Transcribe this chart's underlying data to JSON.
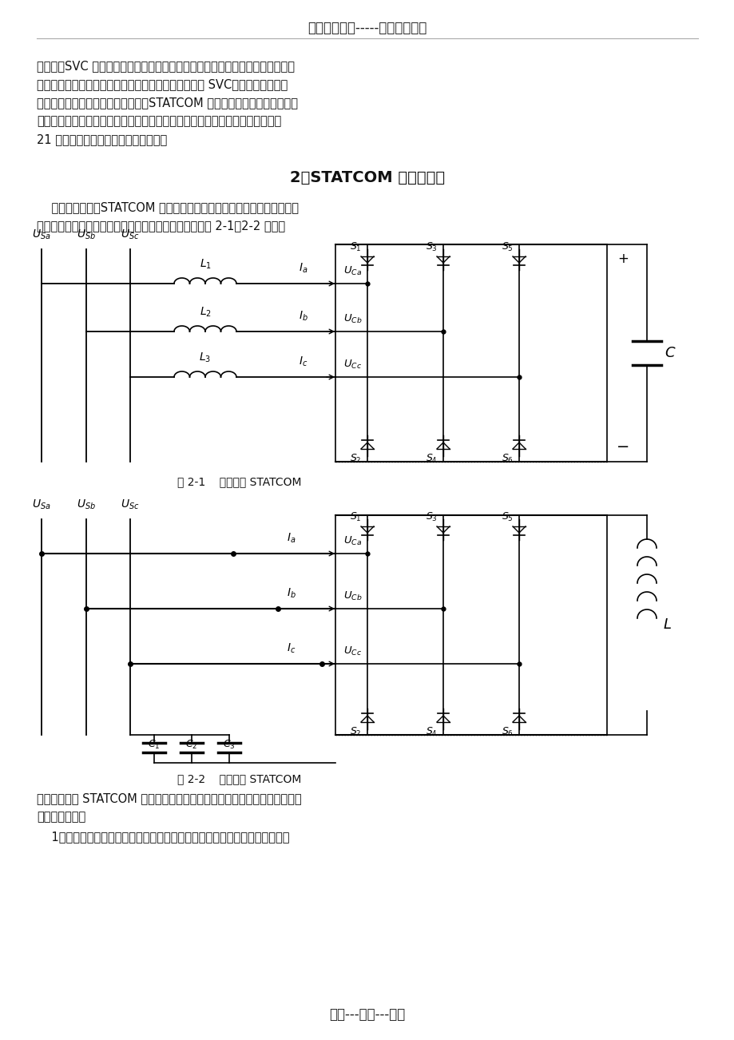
{
  "bg_color": "#ffffff",
  "title_top": "精选优质文档-----倾情为你奉上",
  "footer": "专心---专注---专业",
  "para1": "生谐振；SVC 装置是电抗或电容型的，接入电力系统容易与系统阻抗产生谐振。\n虽然目前电力系统中应用最为广泛的无功补偿设备还是 SVC，但是电力电子技\n术以及电力系统研究专家普遍认为，STATCOM 所具有的以上优势使其成为传\n统无功补偿设备的理想替代者，全面满足了电力系统对无功补偿的各项要求，使\n21 世纪的电力系统运行品质更为卓越。",
  "section_title": "2、STATCOM 的工作原理",
  "para2": "    从理论上分析，STATCOM 的直流侧可以采用电容或者电感两种形式。因\n此，其基本拓扑结构分为电压源型和电流源型，分别如图 2-1、2-2 所示：",
  "fig1_caption": "图 2-1    电压源型 STATCOM",
  "fig2_caption": "图 2-2    电流源型 STATCOM",
  "para3": "实际上，目前 STATCOM 装置中研究最深入、应用最广泛是电压源型逆变器结\n构，原因如下：",
  "para4": "    1、电流源型逆变器的工作原理，需要采用具有对称特性的大功率开关器件，"
}
